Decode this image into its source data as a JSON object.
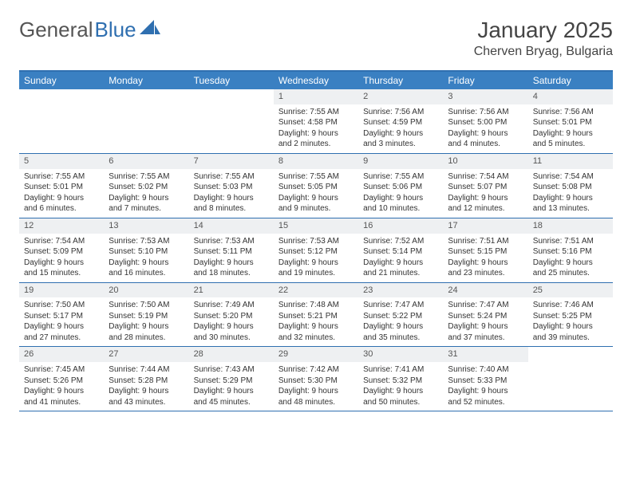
{
  "brand": {
    "text1": "General",
    "text2": "Blue"
  },
  "title": "January 2025",
  "location": "Cherven Bryag, Bulgaria",
  "colors": {
    "header_bar": "#3a80c2",
    "rule": "#2f6fb0",
    "daynum_bg": "#eef0f2",
    "text": "#333333",
    "bg": "#ffffff"
  },
  "day_headers": [
    "Sunday",
    "Monday",
    "Tuesday",
    "Wednesday",
    "Thursday",
    "Friday",
    "Saturday"
  ],
  "weeks": [
    [
      null,
      null,
      null,
      {
        "n": "1",
        "sr": "Sunrise: 7:55 AM",
        "ss": "Sunset: 4:58 PM",
        "d1": "Daylight: 9 hours",
        "d2": "and 2 minutes."
      },
      {
        "n": "2",
        "sr": "Sunrise: 7:56 AM",
        "ss": "Sunset: 4:59 PM",
        "d1": "Daylight: 9 hours",
        "d2": "and 3 minutes."
      },
      {
        "n": "3",
        "sr": "Sunrise: 7:56 AM",
        "ss": "Sunset: 5:00 PM",
        "d1": "Daylight: 9 hours",
        "d2": "and 4 minutes."
      },
      {
        "n": "4",
        "sr": "Sunrise: 7:56 AM",
        "ss": "Sunset: 5:01 PM",
        "d1": "Daylight: 9 hours",
        "d2": "and 5 minutes."
      }
    ],
    [
      {
        "n": "5",
        "sr": "Sunrise: 7:55 AM",
        "ss": "Sunset: 5:01 PM",
        "d1": "Daylight: 9 hours",
        "d2": "and 6 minutes."
      },
      {
        "n": "6",
        "sr": "Sunrise: 7:55 AM",
        "ss": "Sunset: 5:02 PM",
        "d1": "Daylight: 9 hours",
        "d2": "and 7 minutes."
      },
      {
        "n": "7",
        "sr": "Sunrise: 7:55 AM",
        "ss": "Sunset: 5:03 PM",
        "d1": "Daylight: 9 hours",
        "d2": "and 8 minutes."
      },
      {
        "n": "8",
        "sr": "Sunrise: 7:55 AM",
        "ss": "Sunset: 5:05 PM",
        "d1": "Daylight: 9 hours",
        "d2": "and 9 minutes."
      },
      {
        "n": "9",
        "sr": "Sunrise: 7:55 AM",
        "ss": "Sunset: 5:06 PM",
        "d1": "Daylight: 9 hours",
        "d2": "and 10 minutes."
      },
      {
        "n": "10",
        "sr": "Sunrise: 7:54 AM",
        "ss": "Sunset: 5:07 PM",
        "d1": "Daylight: 9 hours",
        "d2": "and 12 minutes."
      },
      {
        "n": "11",
        "sr": "Sunrise: 7:54 AM",
        "ss": "Sunset: 5:08 PM",
        "d1": "Daylight: 9 hours",
        "d2": "and 13 minutes."
      }
    ],
    [
      {
        "n": "12",
        "sr": "Sunrise: 7:54 AM",
        "ss": "Sunset: 5:09 PM",
        "d1": "Daylight: 9 hours",
        "d2": "and 15 minutes."
      },
      {
        "n": "13",
        "sr": "Sunrise: 7:53 AM",
        "ss": "Sunset: 5:10 PM",
        "d1": "Daylight: 9 hours",
        "d2": "and 16 minutes."
      },
      {
        "n": "14",
        "sr": "Sunrise: 7:53 AM",
        "ss": "Sunset: 5:11 PM",
        "d1": "Daylight: 9 hours",
        "d2": "and 18 minutes."
      },
      {
        "n": "15",
        "sr": "Sunrise: 7:53 AM",
        "ss": "Sunset: 5:12 PM",
        "d1": "Daylight: 9 hours",
        "d2": "and 19 minutes."
      },
      {
        "n": "16",
        "sr": "Sunrise: 7:52 AM",
        "ss": "Sunset: 5:14 PM",
        "d1": "Daylight: 9 hours",
        "d2": "and 21 minutes."
      },
      {
        "n": "17",
        "sr": "Sunrise: 7:51 AM",
        "ss": "Sunset: 5:15 PM",
        "d1": "Daylight: 9 hours",
        "d2": "and 23 minutes."
      },
      {
        "n": "18",
        "sr": "Sunrise: 7:51 AM",
        "ss": "Sunset: 5:16 PM",
        "d1": "Daylight: 9 hours",
        "d2": "and 25 minutes."
      }
    ],
    [
      {
        "n": "19",
        "sr": "Sunrise: 7:50 AM",
        "ss": "Sunset: 5:17 PM",
        "d1": "Daylight: 9 hours",
        "d2": "and 27 minutes."
      },
      {
        "n": "20",
        "sr": "Sunrise: 7:50 AM",
        "ss": "Sunset: 5:19 PM",
        "d1": "Daylight: 9 hours",
        "d2": "and 28 minutes."
      },
      {
        "n": "21",
        "sr": "Sunrise: 7:49 AM",
        "ss": "Sunset: 5:20 PM",
        "d1": "Daylight: 9 hours",
        "d2": "and 30 minutes."
      },
      {
        "n": "22",
        "sr": "Sunrise: 7:48 AM",
        "ss": "Sunset: 5:21 PM",
        "d1": "Daylight: 9 hours",
        "d2": "and 32 minutes."
      },
      {
        "n": "23",
        "sr": "Sunrise: 7:47 AM",
        "ss": "Sunset: 5:22 PM",
        "d1": "Daylight: 9 hours",
        "d2": "and 35 minutes."
      },
      {
        "n": "24",
        "sr": "Sunrise: 7:47 AM",
        "ss": "Sunset: 5:24 PM",
        "d1": "Daylight: 9 hours",
        "d2": "and 37 minutes."
      },
      {
        "n": "25",
        "sr": "Sunrise: 7:46 AM",
        "ss": "Sunset: 5:25 PM",
        "d1": "Daylight: 9 hours",
        "d2": "and 39 minutes."
      }
    ],
    [
      {
        "n": "26",
        "sr": "Sunrise: 7:45 AM",
        "ss": "Sunset: 5:26 PM",
        "d1": "Daylight: 9 hours",
        "d2": "and 41 minutes."
      },
      {
        "n": "27",
        "sr": "Sunrise: 7:44 AM",
        "ss": "Sunset: 5:28 PM",
        "d1": "Daylight: 9 hours",
        "d2": "and 43 minutes."
      },
      {
        "n": "28",
        "sr": "Sunrise: 7:43 AM",
        "ss": "Sunset: 5:29 PM",
        "d1": "Daylight: 9 hours",
        "d2": "and 45 minutes."
      },
      {
        "n": "29",
        "sr": "Sunrise: 7:42 AM",
        "ss": "Sunset: 5:30 PM",
        "d1": "Daylight: 9 hours",
        "d2": "and 48 minutes."
      },
      {
        "n": "30",
        "sr": "Sunrise: 7:41 AM",
        "ss": "Sunset: 5:32 PM",
        "d1": "Daylight: 9 hours",
        "d2": "and 50 minutes."
      },
      {
        "n": "31",
        "sr": "Sunrise: 7:40 AM",
        "ss": "Sunset: 5:33 PM",
        "d1": "Daylight: 9 hours",
        "d2": "and 52 minutes."
      },
      null
    ]
  ]
}
